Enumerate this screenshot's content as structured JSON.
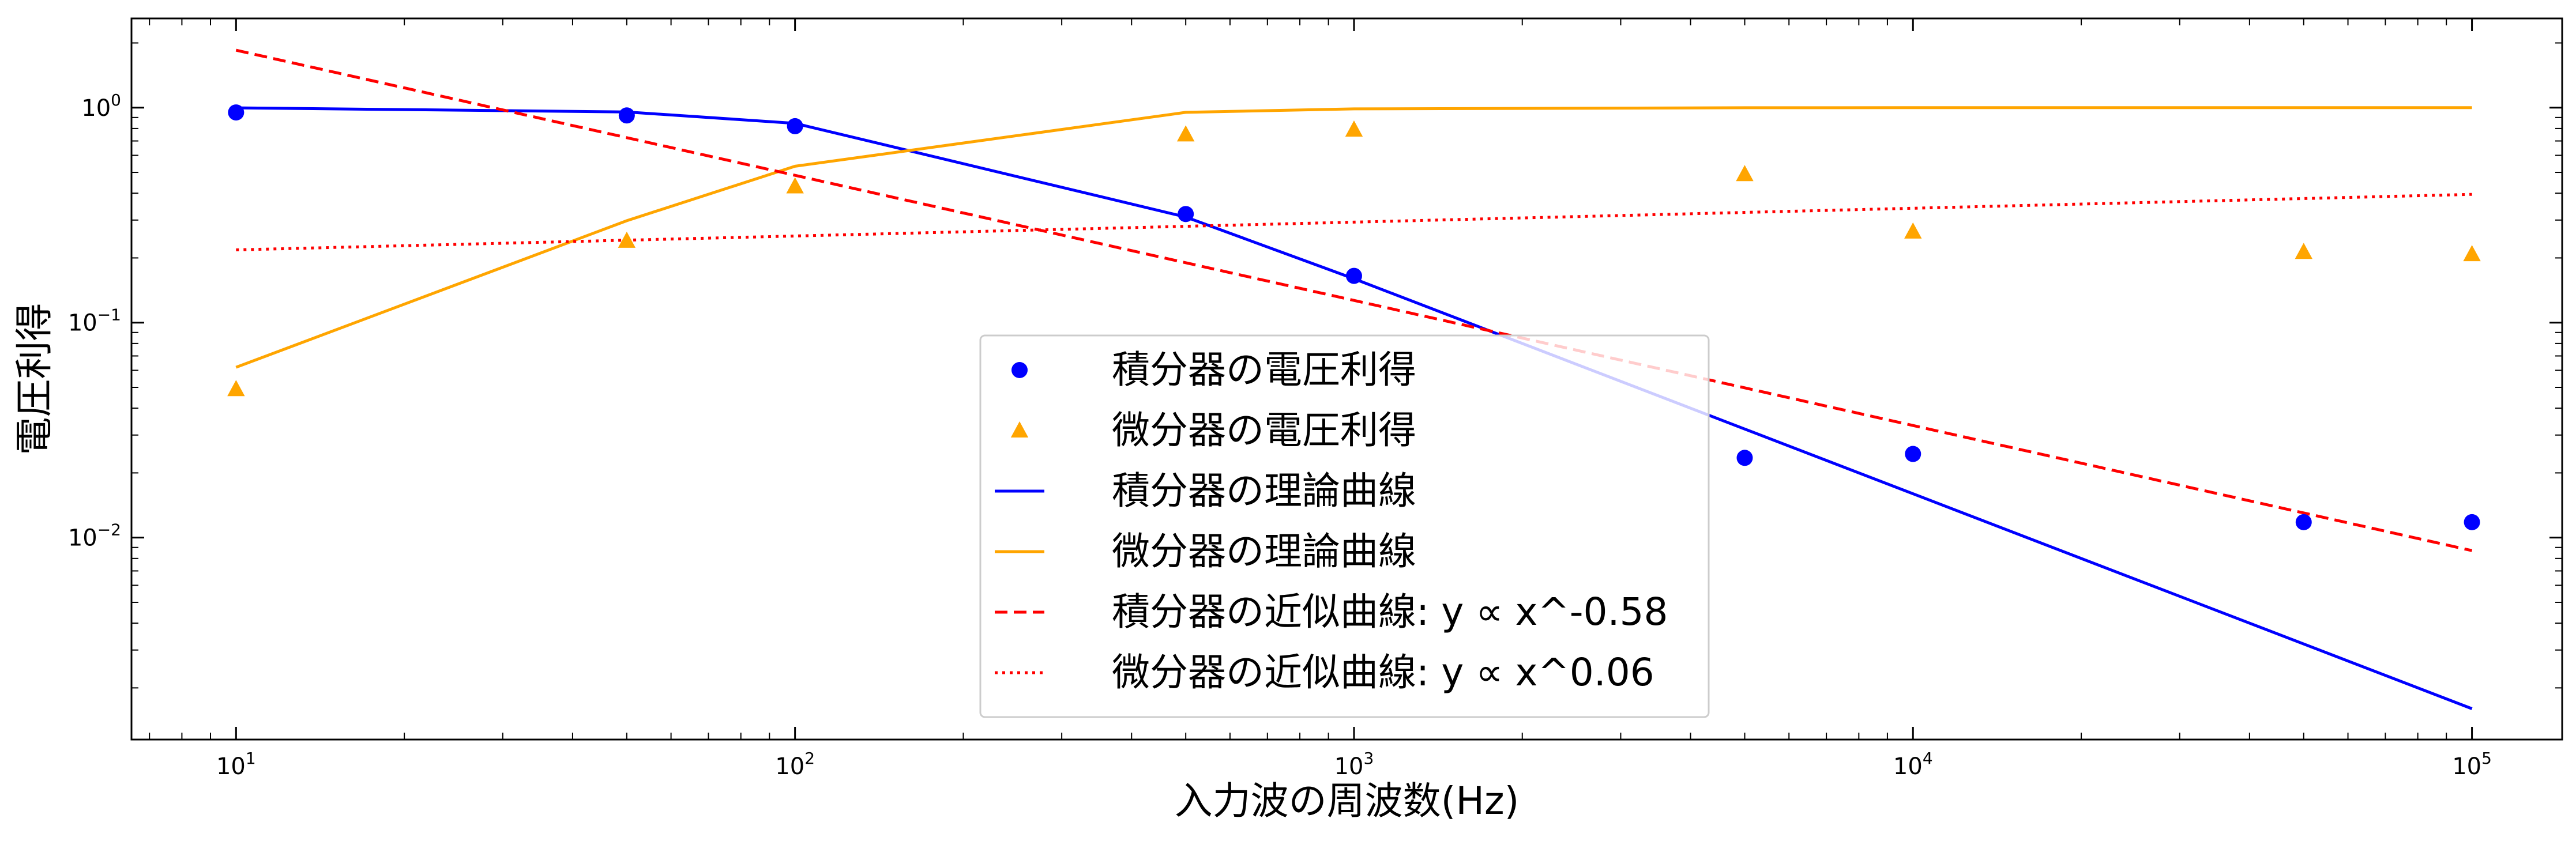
{
  "chart_data": {
    "type": "scatter",
    "title": "",
    "xlabel": "入力波の周波数(Hz)",
    "ylabel": "電圧利得",
    "xscale": "log",
    "yscale": "log",
    "xlim": [
      6.5,
      145000
    ],
    "ylim": [
      0.00115,
      2.6
    ],
    "xticks": [
      {
        "value": 10,
        "base": "10",
        "exp": "1"
      },
      {
        "value": 100,
        "base": "10",
        "exp": "2"
      },
      {
        "value": 1000,
        "base": "10",
        "exp": "3"
      },
      {
        "value": 10000,
        "base": "10",
        "exp": "4"
      },
      {
        "value": 100000,
        "base": "10",
        "exp": "5"
      }
    ],
    "yticks": [
      {
        "value": 1,
        "base": "10",
        "exp": "0"
      },
      {
        "value": 0.1,
        "base": "10",
        "exp": "−1"
      },
      {
        "value": 0.01,
        "base": "10",
        "exp": "−2"
      }
    ],
    "grid": false,
    "legend_position": "lower-center",
    "series": [
      {
        "name": "積分器の電圧利得",
        "kind": "scatter",
        "marker": "circle",
        "color": "#0000ff",
        "x": [
          10,
          50,
          100,
          500,
          1000,
          5000,
          10000,
          50000,
          100000
        ],
        "y": [
          0.95,
          0.92,
          0.82,
          0.32,
          0.165,
          0.0235,
          0.0245,
          0.0118,
          0.0118
        ]
      },
      {
        "name": "微分器の電圧利得",
        "kind": "scatter",
        "marker": "triangle",
        "color": "#ffa500",
        "x": [
          10,
          50,
          100,
          500,
          1000,
          5000,
          10000,
          50000,
          100000
        ],
        "y": [
          0.049,
          0.24,
          0.43,
          0.75,
          0.79,
          0.49,
          0.265,
          0.213,
          0.208
        ]
      },
      {
        "name": "積分器の理論曲線",
        "kind": "line",
        "style": "solid",
        "color": "#0000ff",
        "x": [
          10,
          50,
          100,
          500,
          1000,
          5000,
          10000,
          50000,
          100000
        ],
        "y": [
          0.998,
          0.955,
          0.845,
          0.31,
          0.16,
          0.032,
          0.016,
          0.0032,
          0.0016
        ]
      },
      {
        "name": "微分器の理論曲線",
        "kind": "line",
        "style": "solid",
        "color": "#ffa500",
        "x": [
          10,
          50,
          100,
          500,
          1000,
          5000,
          10000,
          50000,
          100000
        ],
        "y": [
          0.062,
          0.298,
          0.534,
          0.951,
          0.987,
          0.999,
          1.0,
          1.0,
          1.0
        ]
      },
      {
        "name": "積分器の近似曲線: y ∝ x^-0.58",
        "kind": "line",
        "style": "dashed",
        "color": "#ff0000",
        "x": [
          10,
          100000
        ],
        "y": [
          1.85,
          0.0087
        ]
      },
      {
        "name": "微分器の近似曲線: y ∝ x^0.06",
        "kind": "line",
        "style": "dotted",
        "color": "#ff0000",
        "x": [
          10,
          100000
        ],
        "y": [
          0.218,
          0.395
        ]
      }
    ]
  }
}
